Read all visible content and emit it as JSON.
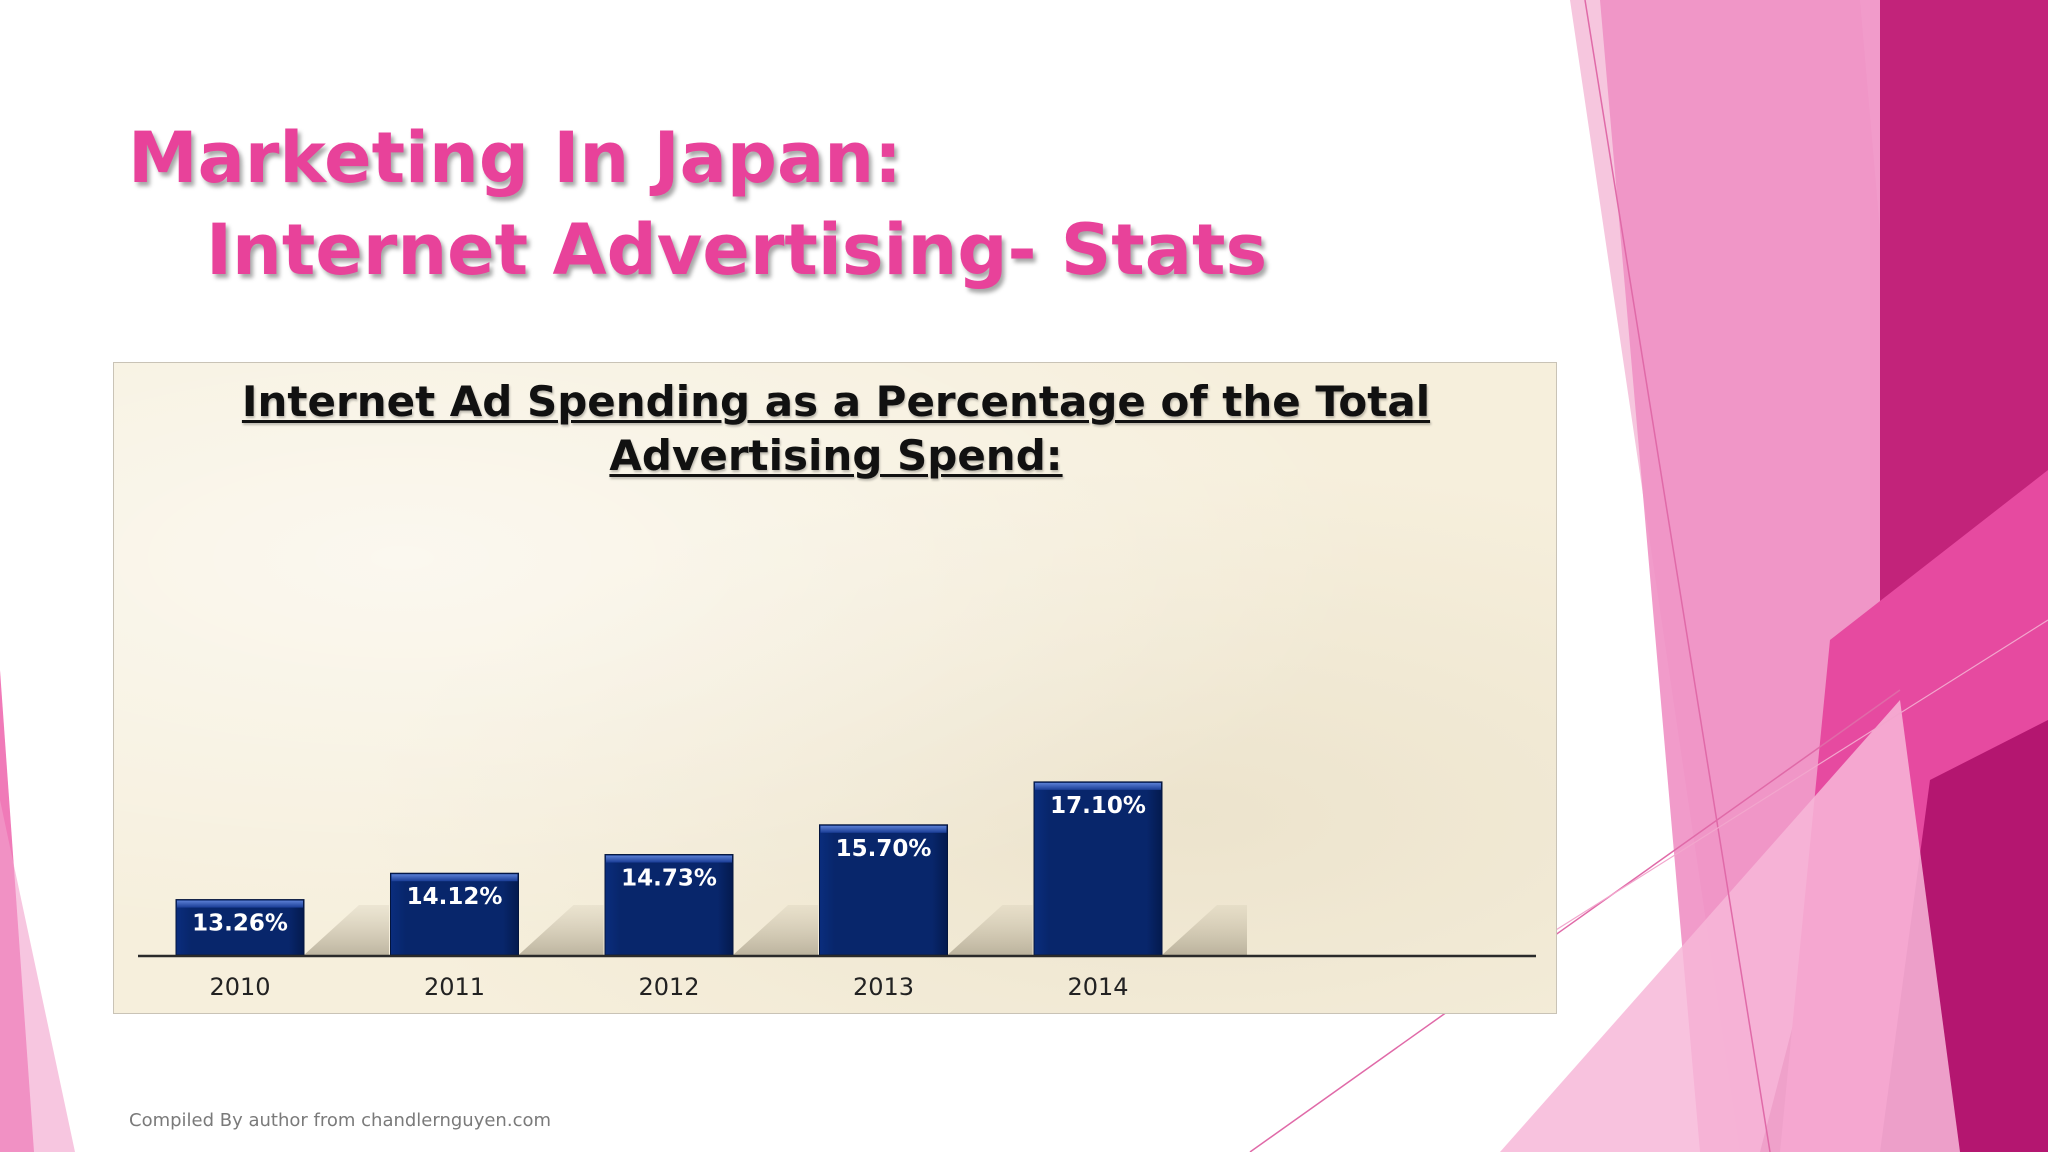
{
  "slide": {
    "title_line1": "Marketing In Japan:",
    "title_line2": "Internet Advertising- Stats",
    "source_note": "Compiled By author from chandlernguyen.com",
    "accent_color": "#e8429a"
  },
  "chart_data": {
    "type": "bar",
    "title_line1": "Internet Ad Spending as a Percentage of the Total",
    "title_line2": "Advertising Spend:",
    "categories": [
      "2010",
      "2011",
      "2012",
      "2013",
      "2014"
    ],
    "values": [
      13.26,
      14.12,
      14.73,
      15.7,
      17.1
    ],
    "value_labels": [
      "13.26%",
      "14.12%",
      "14.73%",
      "15.70%",
      "17.10%"
    ],
    "bar_color": "#08266b",
    "background_color": "#f6efdc",
    "grid": false,
    "legend": "none"
  }
}
